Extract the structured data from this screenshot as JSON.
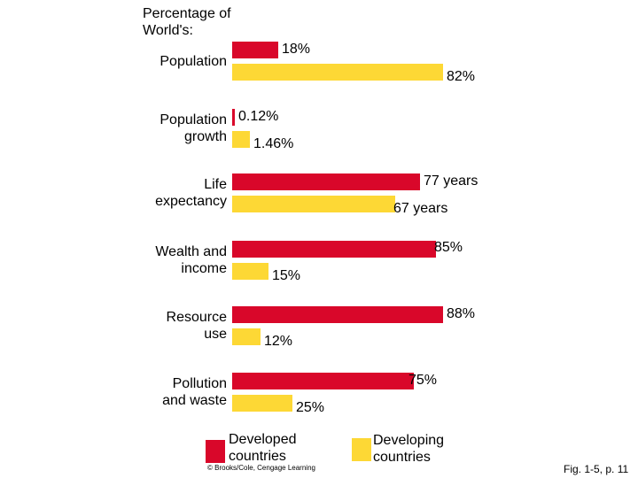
{
  "chart_data": {
    "type": "bar",
    "orientation": "horizontal",
    "title": "Percentage of World's:",
    "categories": [
      "Population",
      "Population growth",
      "Life expectancy",
      "Wealth and income",
      "Resource use",
      "Pollution and waste"
    ],
    "category_lines": [
      [
        "Population"
      ],
      [
        "Population",
        "growth"
      ],
      [
        "Life",
        "expectancy"
      ],
      [
        "Wealth and",
        "income"
      ],
      [
        "Resource",
        "use"
      ],
      [
        "Pollution",
        "and waste"
      ]
    ],
    "series": [
      {
        "name": "Developed countries",
        "color": "#D9072A",
        "values": [
          18,
          0.12,
          77,
          85,
          88,
          75
        ],
        "labels": [
          "18%",
          "0.12%",
          "77 years",
          "85%",
          "88%",
          "75%"
        ]
      },
      {
        "name": "Developing countries",
        "color": "#FDD835",
        "values": [
          82,
          1.46,
          67,
          15,
          12,
          25
        ],
        "labels": [
          "82%",
          "1.46%",
          "67 years",
          "15%",
          "12%",
          "25%"
        ]
      }
    ],
    "legend": {
      "position": "bottom",
      "entries": [
        [
          "Developed",
          "countries"
        ],
        [
          "Developing",
          "countries"
        ]
      ]
    },
    "grid": false
  },
  "credit": "© Brooks/Cole, Cengage Learning",
  "figure_label": "Fig. 1-5, p. 11"
}
